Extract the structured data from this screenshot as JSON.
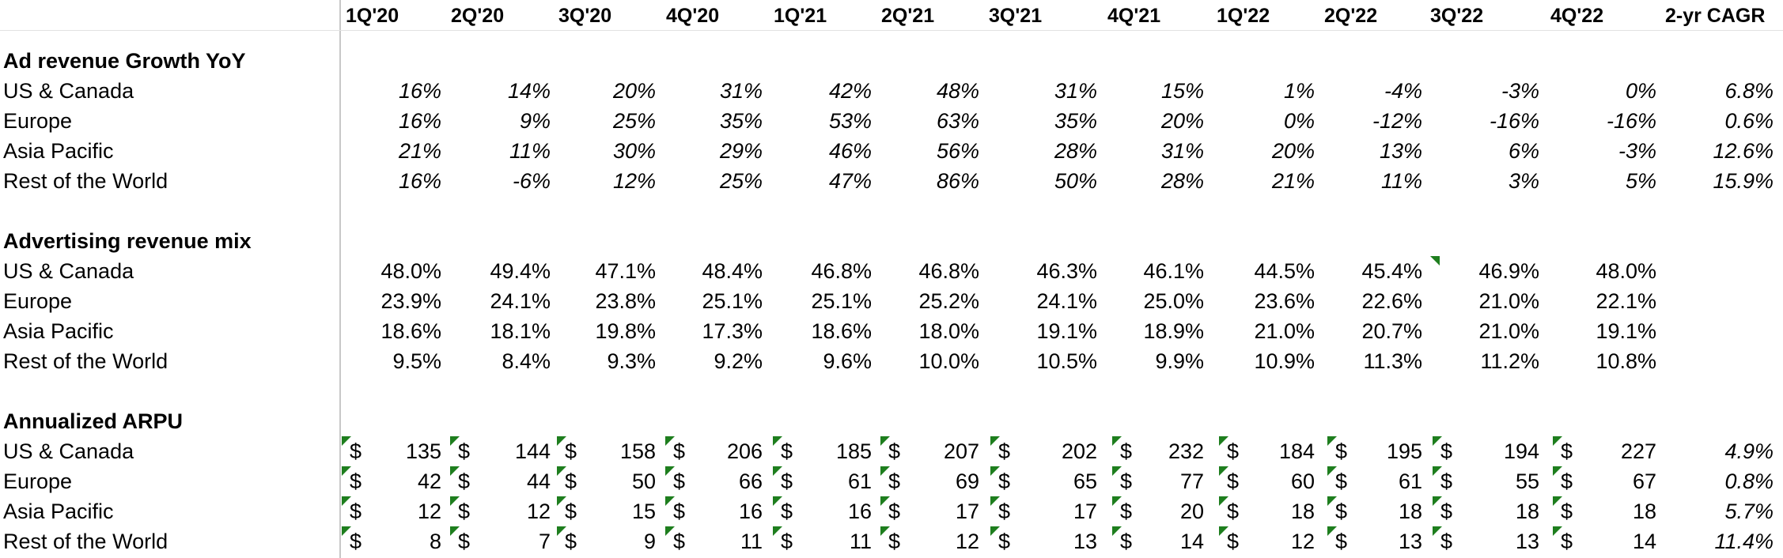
{
  "headers": [
    "1Q'20",
    "2Q'20",
    "3Q'20",
    "4Q'20",
    "1Q'21",
    "2Q'21",
    "3Q'21",
    "4Q'21",
    "1Q'22",
    "2Q'22",
    "3Q'22",
    "4Q'22",
    "2-yr CAGR"
  ],
  "sections": [
    {
      "title": "Ad revenue Growth YoY",
      "format": "italic",
      "rows": [
        {
          "label": "US & Canada",
          "values": [
            "16%",
            "14%",
            "20%",
            "31%",
            "42%",
            "48%",
            "31%",
            "15%",
            "1%",
            "-4%",
            "-3%",
            "0%"
          ],
          "cagr": "6.8%"
        },
        {
          "label": "Europe",
          "values": [
            "16%",
            "9%",
            "25%",
            "35%",
            "53%",
            "63%",
            "35%",
            "20%",
            "0%",
            "-12%",
            "-16%",
            "-16%"
          ],
          "cagr": "0.6%"
        },
        {
          "label": "Asia Pacific",
          "values": [
            "21%",
            "11%",
            "30%",
            "29%",
            "46%",
            "56%",
            "28%",
            "31%",
            "20%",
            "13%",
            "6%",
            "-3%"
          ],
          "cagr": "12.6%"
        },
        {
          "label": "Rest of the World",
          "values": [
            "16%",
            "-6%",
            "12%",
            "25%",
            "47%",
            "86%",
            "50%",
            "28%",
            "21%",
            "11%",
            "3%",
            "5%"
          ],
          "cagr": "15.9%"
        }
      ]
    },
    {
      "title": "Advertising revenue mix",
      "format": "plain",
      "rows": [
        {
          "label": "US & Canada",
          "values": [
            "48.0%",
            "49.4%",
            "47.1%",
            "48.4%",
            "46.8%",
            "46.8%",
            "46.3%",
            "46.1%",
            "44.5%",
            "45.4%",
            "46.9%",
            "48.0%"
          ],
          "cagr": ""
        },
        {
          "label": "Europe",
          "values": [
            "23.9%",
            "24.1%",
            "23.8%",
            "25.1%",
            "25.1%",
            "25.2%",
            "24.1%",
            "25.0%",
            "23.6%",
            "22.6%",
            "21.0%",
            "22.1%"
          ],
          "cagr": ""
        },
        {
          "label": "Asia Pacific",
          "values": [
            "18.6%",
            "18.1%",
            "19.8%",
            "17.3%",
            "18.6%",
            "18.0%",
            "19.1%",
            "18.9%",
            "21.0%",
            "20.7%",
            "21.0%",
            "19.1%"
          ],
          "cagr": ""
        },
        {
          "label": "Rest of the World",
          "values": [
            "9.5%",
            "8.4%",
            "9.3%",
            "9.2%",
            "9.6%",
            "10.0%",
            "10.5%",
            "9.9%",
            "10.9%",
            "11.3%",
            "11.2%",
            "10.8%"
          ],
          "cagr": ""
        }
      ]
    },
    {
      "title": "Annualized ARPU",
      "format": "currency",
      "currency_symbol": "$",
      "rows": [
        {
          "label": "US & Canada",
          "values": [
            "135",
            "144",
            "158",
            "206",
            "185",
            "207",
            "202",
            "232",
            "184",
            "195",
            "194",
            "227"
          ],
          "cagr": "4.9%"
        },
        {
          "label": "Europe",
          "values": [
            "42",
            "44",
            "50",
            "66",
            "61",
            "69",
            "65",
            "77",
            "60",
            "61",
            "55",
            "67"
          ],
          "cagr": "0.8%"
        },
        {
          "label": "Asia Pacific",
          "values": [
            "12",
            "12",
            "15",
            "16",
            "16",
            "17",
            "17",
            "20",
            "18",
            "18",
            "18",
            "18"
          ],
          "cagr": "5.7%"
        },
        {
          "label": "Rest of the World",
          "values": [
            "8",
            "7",
            "9",
            "11",
            "11",
            "12",
            "13",
            "14",
            "12",
            "13",
            "13",
            "14"
          ],
          "cagr": "11.4%"
        }
      ]
    }
  ],
  "colors": {
    "comment_marker": "#1e7e1e",
    "gridline": "#c8c8c8"
  }
}
